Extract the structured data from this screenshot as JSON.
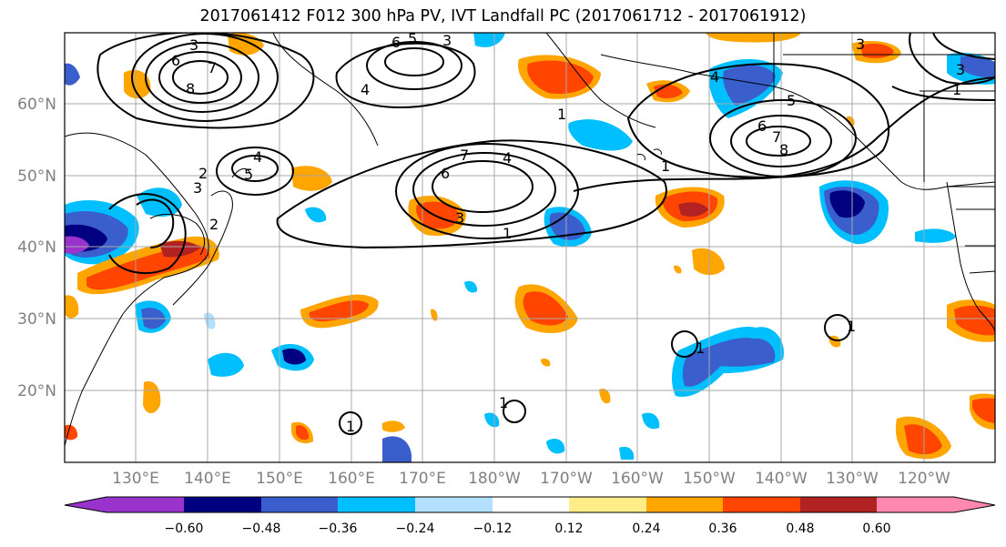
{
  "title": "2017061412 F012 300 hPa PV, IVT Landfall PC (2017061712 - 2017061912)",
  "map": {
    "lat_labels": [
      "60°N",
      "50°N",
      "40°N",
      "30°N",
      "20°N"
    ],
    "lon_labels": [
      "130°E",
      "140°E",
      "150°E",
      "160°E",
      "170°E",
      "180°W",
      "170°W",
      "160°W",
      "150°W",
      "140°W",
      "130°W",
      "120°W"
    ],
    "contour_labels": [
      "3",
      "6",
      "8",
      "7",
      "6",
      "5",
      "3",
      "4",
      "5",
      "4",
      "3",
      "6",
      "7",
      "2",
      "1",
      "4",
      "3",
      "1",
      "4",
      "5",
      "6",
      "7",
      "8",
      "1",
      "3",
      "1",
      "3",
      "2",
      "1",
      "1",
      "1",
      "1"
    ],
    "colors": {
      "neg_0_60": "#9933cc",
      "neg_0_48": "#000080",
      "neg_0_36": "#3a5fcd",
      "neg_0_24": "#00bfff",
      "neg_0_12": "#b3e0ff",
      "neutral": "#ffffff",
      "pos_0_12": "#ffee88",
      "pos_0_24": "#ffa500",
      "pos_0_36": "#ff4500",
      "pos_0_48": "#b22222",
      "pos_0_60": "#ff88b0"
    }
  },
  "colorbar": {
    "ticks": [
      "−0.60",
      "−0.48",
      "−0.36",
      "−0.24",
      "−0.12",
      "0.12",
      "0.24",
      "0.36",
      "0.48",
      "0.60"
    ]
  }
}
